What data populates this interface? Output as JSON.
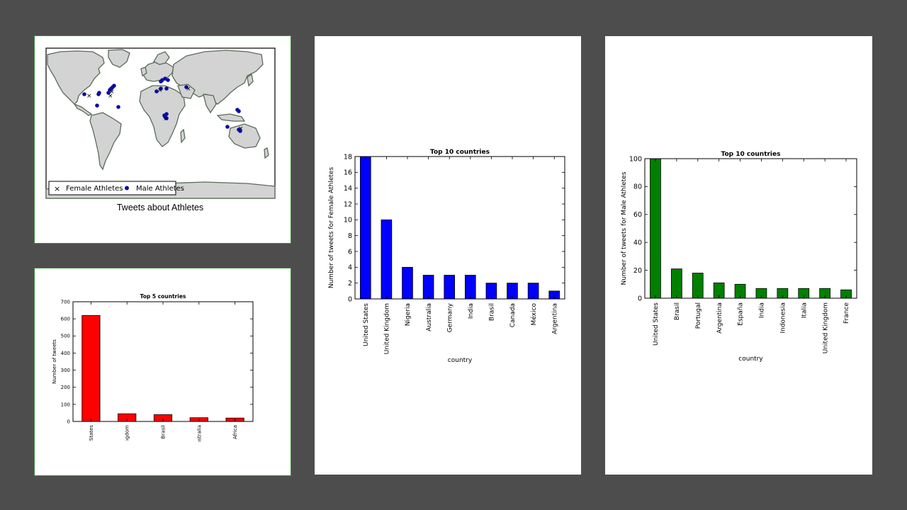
{
  "map": {
    "title": "Tweets about Athletes",
    "legend": {
      "female": "Female Athletes",
      "male": "Male Athletes"
    },
    "colors": {
      "land": "#d3d3d3",
      "coast": "#5a6b5a",
      "female": "#2f6fff",
      "male": "#0a0aa8"
    }
  },
  "chart_data": [
    {
      "id": "top5",
      "type": "bar",
      "title": "Top 5 countries",
      "ylabel": "Number of tweets",
      "xlabel": "",
      "categories": [
        "States",
        "Kingdom",
        "Brasil",
        "Australia",
        "Africa"
      ],
      "visible_tick_labels": [
        "States",
        "ıgdom",
        "Brasil",
        "ıstralia",
        "Africa"
      ],
      "values": [
        620,
        45,
        40,
        22,
        20
      ],
      "ylim": [
        0,
        700
      ],
      "yticks": [
        0,
        100,
        200,
        300,
        400,
        500,
        600,
        700
      ],
      "color": "#ff0000"
    },
    {
      "id": "female",
      "type": "bar",
      "title": "Top 10 countries",
      "ylabel": "Number of tweets for Female Athletes",
      "xlabel": "country",
      "categories": [
        "United States",
        "United Kingdom",
        "Nigeria",
        "Australia",
        "Germany",
        "India",
        "Brasil",
        "Canada",
        "México",
        "Argentina"
      ],
      "values": [
        18,
        10,
        4,
        3,
        3,
        3,
        2,
        2,
        2,
        1
      ],
      "ylim": [
        0,
        18
      ],
      "yticks": [
        0,
        2,
        4,
        6,
        8,
        10,
        12,
        14,
        16,
        18
      ],
      "color": "#0000ff"
    },
    {
      "id": "male",
      "type": "bar",
      "title": "Top 10 countries",
      "ylabel": "Number of tweets for Male Athletes",
      "xlabel": "country",
      "categories": [
        "United States",
        "Brasil",
        "Portugal",
        "Argentina",
        "España",
        "India",
        "Indonesia",
        "Italia",
        "United Kingdom",
        "France"
      ],
      "values": [
        100,
        21,
        18,
        11,
        10,
        7,
        7,
        7,
        7,
        6
      ],
      "ylim": [
        0,
        100
      ],
      "yticks": [
        0,
        20,
        40,
        60,
        80,
        100
      ],
      "color": "#008000"
    }
  ]
}
